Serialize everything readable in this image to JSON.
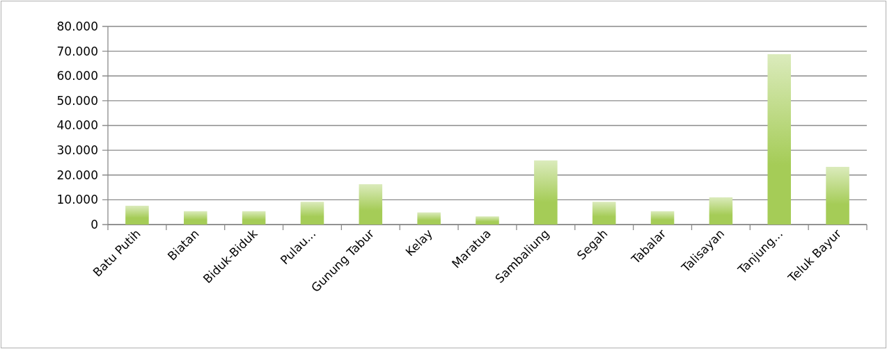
{
  "chart_data": {
    "type": "bar",
    "categories": [
      "Batu Putih",
      "Biatan",
      "Biduk-Biduk",
      "Pulau...",
      "Gunung Tabur",
      "Kelay",
      "Maratua",
      "Sambaliung",
      "Segah",
      "Tabalar",
      "Talisayan",
      "Tanjung...",
      "Teluk Bayur"
    ],
    "values": [
      7600,
      5400,
      5400,
      9200,
      16300,
      4900,
      3300,
      25900,
      9200,
      5400,
      11000,
      68800,
      23300
    ],
    "color": "#a5cc57",
    "ylim": [
      0,
      80000
    ],
    "yticks": [
      {
        "value": 0,
        "label": "0"
      },
      {
        "value": 10000,
        "label": "10.000"
      },
      {
        "value": 20000,
        "label": "20.000"
      },
      {
        "value": 30000,
        "label": "30.000"
      },
      {
        "value": 40000,
        "label": "40.000"
      },
      {
        "value": 50000,
        "label": "50.000"
      },
      {
        "value": 60000,
        "label": "60.000"
      },
      {
        "value": 70000,
        "label": "70.000"
      },
      {
        "value": 80000,
        "label": "80.000"
      }
    ],
    "grid": "y"
  }
}
